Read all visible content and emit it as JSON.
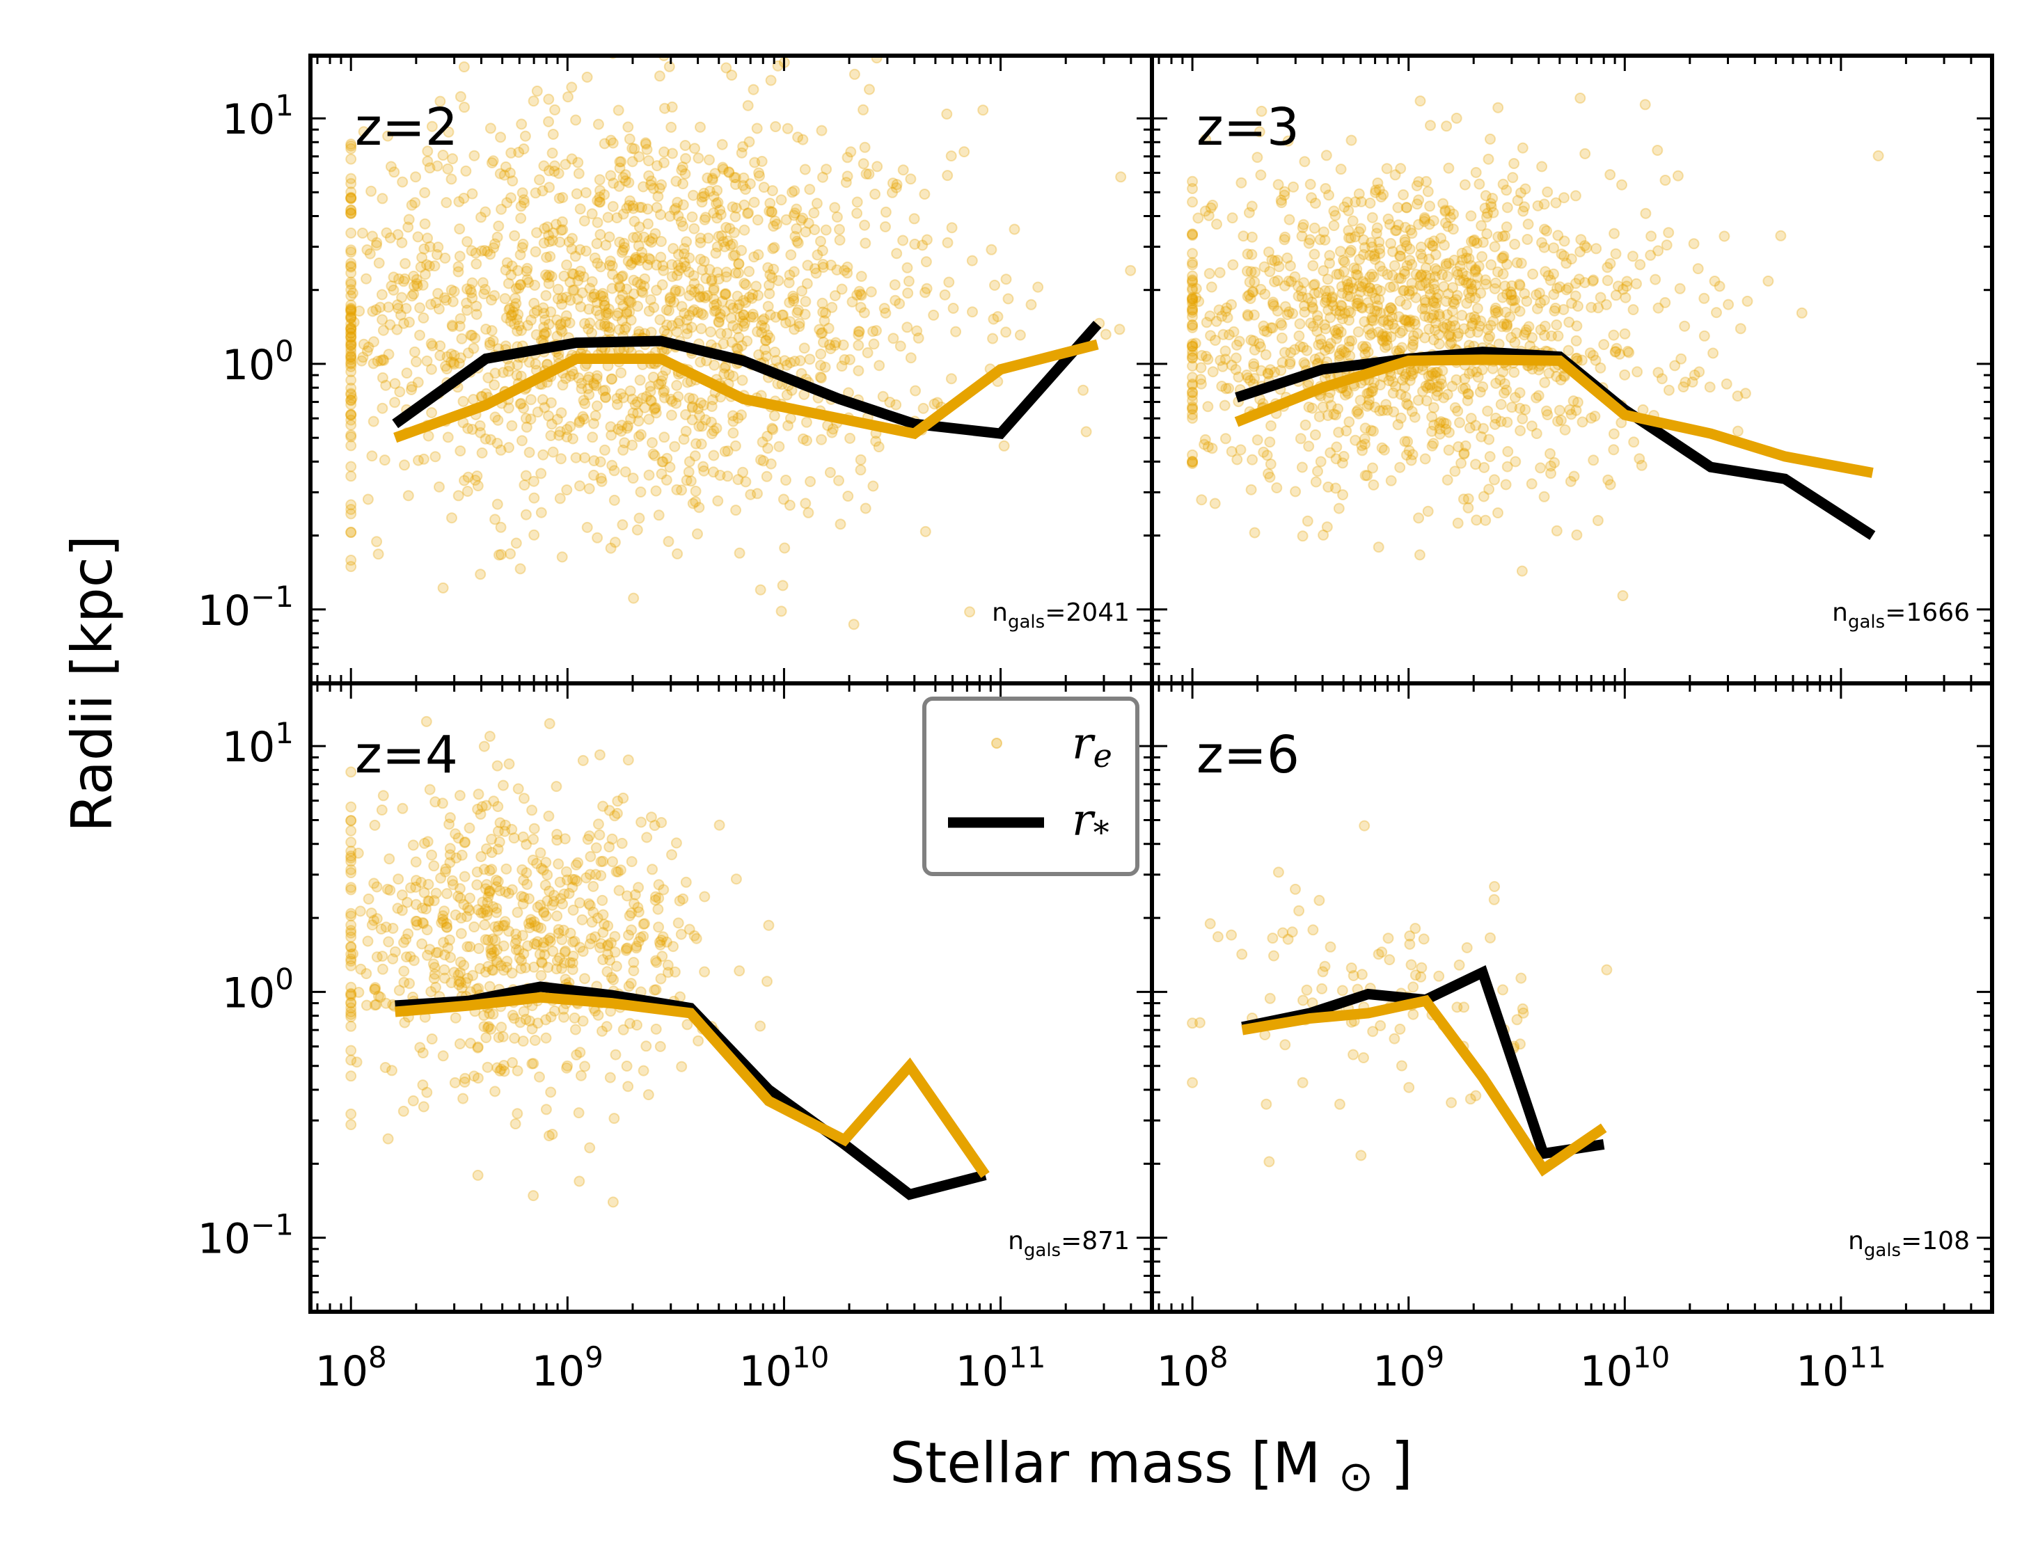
{
  "chart_data": {
    "type": "scatter",
    "figure": {
      "xlabel": "Stellar mass [M",
      "xlabel_symbol": "⊙",
      "xlabel_close": "]",
      "ylabel": "Radii [kpc]",
      "x_scale": "log",
      "y_scale": "log",
      "xlim": [
        65000000.0,
        500000000000.0
      ],
      "ylim": [
        0.05,
        18
      ],
      "x_ticks": [
        {
          "value": 100000000.0,
          "base": "10",
          "exp": "8"
        },
        {
          "value": 1000000000.0,
          "base": "10",
          "exp": "9"
        },
        {
          "value": 10000000000.0,
          "base": "10",
          "exp": "10"
        },
        {
          "value": 100000000000.0,
          "base": "10",
          "exp": "11"
        }
      ],
      "y_ticks": [
        {
          "value": 0.1,
          "base": "10",
          "exp": "−1"
        },
        {
          "value": 1,
          "base": "10",
          "exp": "0"
        },
        {
          "value": 10,
          "base": "10",
          "exp": "1"
        }
      ],
      "colors": {
        "scatter": "#e6a300",
        "r_e_line": "#e6a300",
        "r_star_line": "#000000",
        "axes": "#000000"
      },
      "legend": {
        "location": "top-right of z=4 panel",
        "entries": [
          {
            "label": "r",
            "subscript": "e",
            "marker": "dot",
            "color": "#e6a300"
          },
          {
            "label": "r",
            "subscript": "*",
            "marker": "line",
            "color": "#000000"
          }
        ]
      }
    },
    "panels": [
      {
        "label": "z=2",
        "n_gals_prefix": "n",
        "n_gals_sub": "gals",
        "n_gals_value": "=2041",
        "scatter_cloud": {
          "count": 1600,
          "log_mass_center": 9.3,
          "log_mass_spread": 0.75,
          "log_radius_center": 0.2,
          "log_radius_spread": 0.42,
          "log_mass_min": 8.0,
          "log_mass_max": 11.6
        },
        "series": [
          {
            "name": "r_*",
            "color": "#000000",
            "x": [
              160000000.0,
              420000000.0,
              1100000000.0,
              2700000000.0,
              6500000000.0,
              18000000000.0,
              40000000000.0,
              100000000000.0,
              280000000000.0
            ],
            "y": [
              0.57,
              1.05,
              1.22,
              1.24,
              1.03,
              0.72,
              0.57,
              0.52,
              1.45
            ]
          },
          {
            "name": "r_e",
            "color": "#e6a300",
            "x": [
              160000000.0,
              420000000.0,
              1100000000.0,
              2700000000.0,
              6500000000.0,
              18000000000.0,
              40000000000.0,
              100000000000.0,
              280000000000.0
            ],
            "y": [
              0.5,
              0.68,
              1.05,
              1.05,
              0.72,
              0.6,
              0.52,
              0.95,
              1.2
            ]
          }
        ]
      },
      {
        "label": "z=3",
        "n_gals_prefix": "n",
        "n_gals_sub": "gals",
        "n_gals_value": "=1666",
        "scatter_cloud": {
          "count": 1300,
          "log_mass_center": 9.0,
          "log_mass_spread": 0.6,
          "log_radius_center": 0.15,
          "log_radius_spread": 0.32,
          "log_mass_min": 8.0,
          "log_mass_max": 11.3
        },
        "series": [
          {
            "name": "r_*",
            "color": "#000000",
            "x": [
              160000000.0,
              400000000.0,
              1000000000.0,
              2200000000.0,
              5000000000.0,
              10000000000.0,
              25000000000.0,
              55000000000.0,
              140000000000.0
            ],
            "y": [
              0.73,
              0.95,
              1.05,
              1.12,
              1.07,
              0.65,
              0.38,
              0.34,
              0.2
            ]
          },
          {
            "name": "r_e",
            "color": "#e6a300",
            "x": [
              160000000.0,
              400000000.0,
              1000000000.0,
              2200000000.0,
              5000000000.0,
              10000000000.0,
              25000000000.0,
              55000000000.0,
              140000000000.0
            ],
            "y": [
              0.58,
              0.8,
              1.03,
              1.04,
              1.03,
              0.62,
              0.52,
              0.42,
              0.36
            ]
          }
        ]
      },
      {
        "label": "z=4",
        "n_gals_prefix": "n",
        "n_gals_sub": "gals",
        "n_gals_value": "=871",
        "scatter_cloud": {
          "count": 700,
          "log_mass_center": 8.75,
          "log_mass_spread": 0.45,
          "log_radius_center": 0.2,
          "log_radius_spread": 0.3,
          "log_mass_min": 8.0,
          "log_mass_max": 11.0
        },
        "series": [
          {
            "name": "r_*",
            "color": "#000000",
            "x": [
              160000000.0,
              350000000.0,
              750000000.0,
              1600000000.0,
              3700000000.0,
              8500000000.0,
              19000000000.0,
              38000000000.0,
              85000000000.0
            ],
            "y": [
              0.88,
              0.92,
              1.05,
              0.97,
              0.86,
              0.4,
              0.24,
              0.15,
              0.18
            ]
          },
          {
            "name": "r_e",
            "color": "#e6a300",
            "x": [
              160000000.0,
              350000000.0,
              750000000.0,
              1600000000.0,
              3700000000.0,
              8500000000.0,
              19000000000.0,
              38000000000.0,
              85000000000.0
            ],
            "y": [
              0.83,
              0.88,
              0.95,
              0.9,
              0.82,
              0.36,
              0.25,
              0.5,
              0.18
            ]
          }
        ]
      },
      {
        "label": "z=6",
        "n_gals_prefix": "n",
        "n_gals_sub": "gals",
        "n_gals_value": "=108",
        "scatter_cloud": {
          "count": 100,
          "log_mass_center": 8.85,
          "log_mass_spread": 0.35,
          "log_radius_center": 0.0,
          "log_radius_spread": 0.25,
          "log_mass_min": 8.0,
          "log_mass_max": 10.6
        },
        "series": [
          {
            "name": "r_*",
            "color": "#000000",
            "x": [
              170000000.0,
              350000000.0,
              650000000.0,
              1200000000.0,
              2200000000.0,
              4200000000.0,
              8000000000.0
            ],
            "y": [
              0.72,
              0.82,
              0.98,
              0.93,
              1.2,
              0.22,
              0.24
            ]
          },
          {
            "name": "r_e",
            "color": "#e6a300",
            "x": [
              170000000.0,
              350000000.0,
              650000000.0,
              1200000000.0,
              2200000000.0,
              4200000000.0,
              8000000000.0
            ],
            "y": [
              0.7,
              0.78,
              0.82,
              0.92,
              0.45,
              0.19,
              0.28
            ]
          }
        ]
      }
    ]
  }
}
